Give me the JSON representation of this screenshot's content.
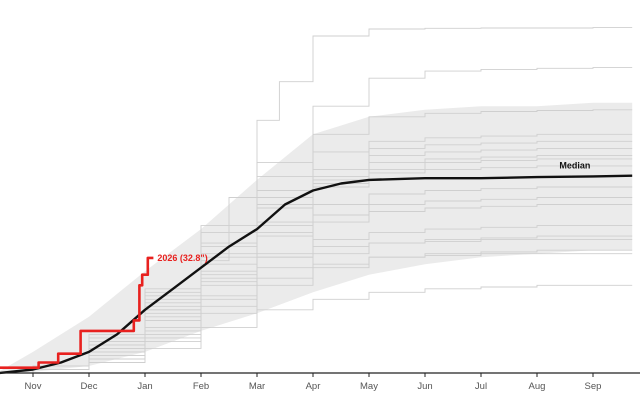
{
  "chart_data": {
    "type": "line",
    "x_unit": "month",
    "x_ticks": [
      "Nov",
      "Dec",
      "Jan",
      "Feb",
      "Mar",
      "Apr",
      "May",
      "Jun",
      "Jul",
      "Aug",
      "Sep"
    ],
    "xlim": [
      -0.6,
      10.7
    ],
    "ylim": [
      0,
      100
    ],
    "grid": false,
    "legend": "none",
    "band": {
      "x": [
        -0.6,
        0,
        1,
        2,
        3,
        4,
        5,
        6,
        7,
        8,
        9,
        10,
        10.7
      ],
      "lower": [
        0,
        0.3,
        2,
        6,
        12,
        17,
        23,
        28,
        31,
        33,
        34,
        35,
        35
      ],
      "upper": [
        0.5,
        6,
        16,
        29,
        41,
        55,
        68,
        73,
        75,
        76,
        76,
        77,
        77
      ]
    },
    "series": [
      {
        "name": "2026 (32.8\")",
        "color": "#e8211f",
        "x": [
          -0.6,
          0,
          0.1,
          0.15,
          0.35,
          0.45,
          0.65,
          0.8,
          0.85,
          1.0,
          1.4,
          1.5,
          1.6,
          1.7,
          1.75,
          1.8,
          1.9,
          1.95,
          2.0,
          2.05,
          2.15
        ],
        "y": [
          1.5,
          1.5,
          3,
          3,
          3,
          5.5,
          5.5,
          5.5,
          12,
          12,
          12,
          12,
          12,
          12,
          12,
          15,
          25,
          28,
          28,
          32.8,
          32.8
        ]
      },
      {
        "name": "Median",
        "color": "#111111",
        "x": [
          -0.6,
          0,
          0.5,
          1,
          1.5,
          2,
          2.5,
          3,
          3.5,
          4,
          4.5,
          5,
          5.5,
          6,
          7,
          8,
          9,
          10,
          10.7
        ],
        "y": [
          0,
          1,
          3,
          6,
          11,
          18,
          24,
          30,
          36,
          41,
          48,
          52,
          54,
          55,
          55.5,
          55.5,
          55.8,
          56,
          56.2
        ]
      }
    ],
    "background_years": [
      {
        "x": [
          -0.6,
          0,
          1,
          2,
          3,
          3.5,
          4,
          4.4,
          5,
          6,
          7,
          8,
          9,
          10,
          10.7
        ],
        "y": [
          0,
          1,
          8,
          18,
          32,
          50,
          72,
          83,
          96,
          98,
          98.2,
          98.3,
          98.3,
          98.4,
          98.4
        ]
      },
      {
        "x": [
          -0.6,
          0,
          1,
          2,
          3,
          4,
          5,
          6,
          7,
          8,
          9,
          10,
          10.7
        ],
        "y": [
          0,
          1,
          9,
          22,
          40,
          60,
          76,
          84,
          86,
          86.5,
          86.8,
          87,
          87
        ]
      },
      {
        "x": [
          -0.6,
          0,
          1,
          2,
          3,
          4,
          5,
          6,
          7,
          8,
          9,
          10,
          10.7
        ],
        "y": [
          0,
          1,
          7,
          17,
          33,
          52,
          68,
          73,
          74,
          74.5,
          74.8,
          75,
          75
        ]
      },
      {
        "x": [
          -0.6,
          0,
          1,
          2,
          3,
          4,
          5,
          6,
          7,
          8,
          9,
          10,
          10.7
        ],
        "y": [
          0,
          2,
          10,
          24,
          42,
          56,
          63,
          66,
          67,
          67.5,
          68,
          68,
          68
        ]
      },
      {
        "x": [
          -0.6,
          0,
          1,
          2,
          3,
          4,
          5,
          6,
          7,
          8,
          9,
          10,
          10.7
        ],
        "y": [
          0,
          1,
          6,
          13,
          26,
          40,
          53,
          58,
          60,
          60.5,
          61,
          61,
          61
        ]
      },
      {
        "x": [
          -0.6,
          0,
          1,
          2,
          3,
          4,
          5,
          6,
          7,
          8,
          9,
          10,
          10.7
        ],
        "y": [
          0,
          2,
          9,
          19,
          31,
          42,
          48,
          51,
          52,
          52.5,
          53,
          53,
          53
        ]
      },
      {
        "x": [
          -0.6,
          0,
          1,
          2,
          3,
          4,
          5,
          6,
          7,
          8,
          9,
          10,
          10.7
        ],
        "y": [
          0,
          1,
          5,
          11,
          21,
          33,
          43,
          46,
          47,
          47.5,
          48,
          48,
          48
        ]
      },
      {
        "x": [
          -0.6,
          0,
          1,
          2,
          3,
          4,
          5,
          6,
          7,
          8,
          9,
          10,
          10.7
        ],
        "y": [
          0,
          2,
          7,
          15,
          25,
          33,
          38,
          40,
          41,
          41.5,
          42,
          42,
          42
        ]
      },
      {
        "x": [
          -0.6,
          0,
          1,
          2,
          3,
          4,
          5,
          6,
          7,
          8,
          9,
          10,
          10.7
        ],
        "y": [
          0,
          1,
          4,
          9,
          17,
          25,
          30,
          33,
          34,
          34.5,
          35,
          35,
          35
        ]
      },
      {
        "x": [
          -0.6,
          0,
          1,
          2,
          3,
          4,
          5,
          6,
          7,
          8,
          9,
          10,
          10.7
        ],
        "y": [
          0,
          1,
          3,
          7,
          13,
          18,
          21,
          23,
          24,
          24.5,
          25,
          25,
          25
        ]
      },
      {
        "x": [
          -0.6,
          0,
          1,
          2,
          3,
          4,
          5,
          6,
          7,
          8,
          9,
          10,
          10.7
        ],
        "y": [
          0,
          1,
          8,
          20,
          34,
          47,
          56,
          60,
          61,
          61.5,
          62,
          62,
          62
        ]
      },
      {
        "x": [
          -0.6,
          0,
          1,
          2,
          3,
          4,
          5,
          6,
          7,
          8,
          9,
          10,
          10.7
        ],
        "y": [
          0,
          2,
          11,
          23,
          37,
          50,
          58,
          64,
          65,
          65.5,
          66,
          66,
          66
        ]
      },
      {
        "x": [
          -0.6,
          0,
          1,
          2,
          3,
          4,
          5,
          6,
          7,
          8,
          9,
          10,
          10.7
        ],
        "y": [
          0,
          1,
          6,
          15,
          28,
          39,
          45,
          48,
          49,
          49.5,
          50,
          50,
          50
        ]
      },
      {
        "x": [
          -0.6,
          0,
          1,
          2,
          3,
          4,
          5,
          6,
          7,
          8,
          9,
          10,
          10.7
        ],
        "y": [
          0,
          1,
          5,
          12,
          22,
          30,
          34,
          37,
          38,
          38.5,
          39,
          39,
          39
        ]
      },
      {
        "x": [
          -0.6,
          0,
          1,
          2,
          3,
          4,
          5,
          6,
          7,
          8,
          9,
          10,
          10.7
        ],
        "y": [
          0,
          2,
          9,
          18,
          27,
          34,
          36,
          37,
          37.5,
          38,
          38,
          38,
          38
        ]
      },
      {
        "x": [
          -0.6,
          0,
          1,
          2,
          3,
          4,
          5,
          6,
          7,
          8,
          9,
          10,
          10.7
        ],
        "y": [
          0,
          1,
          4,
          10,
          19,
          27,
          31,
          33,
          33.5,
          34,
          34,
          34,
          34
        ]
      },
      {
        "x": [
          -0.6,
          0,
          1,
          2,
          3,
          4,
          5,
          6,
          7,
          8,
          9,
          10,
          10.7
        ],
        "y": [
          0,
          1,
          7,
          16,
          29,
          43,
          55,
          62,
          63,
          63.5,
          64,
          64,
          64
        ]
      },
      {
        "x": [
          -0.6,
          0,
          1,
          2,
          3,
          4,
          5,
          6,
          7,
          8,
          9,
          10,
          10.7
        ],
        "y": [
          0,
          2,
          8,
          21,
          36,
          48,
          54,
          57,
          58,
          58.5,
          59,
          59,
          59
        ]
      }
    ],
    "annotations": {
      "current_label": "2026 (32.8\")",
      "median_label": "Median"
    },
    "colors": {
      "band": "#ebebeb",
      "background_line": "#cfcfcf",
      "axis": "#222222",
      "current": "#e8211f",
      "median": "#111111"
    }
  }
}
